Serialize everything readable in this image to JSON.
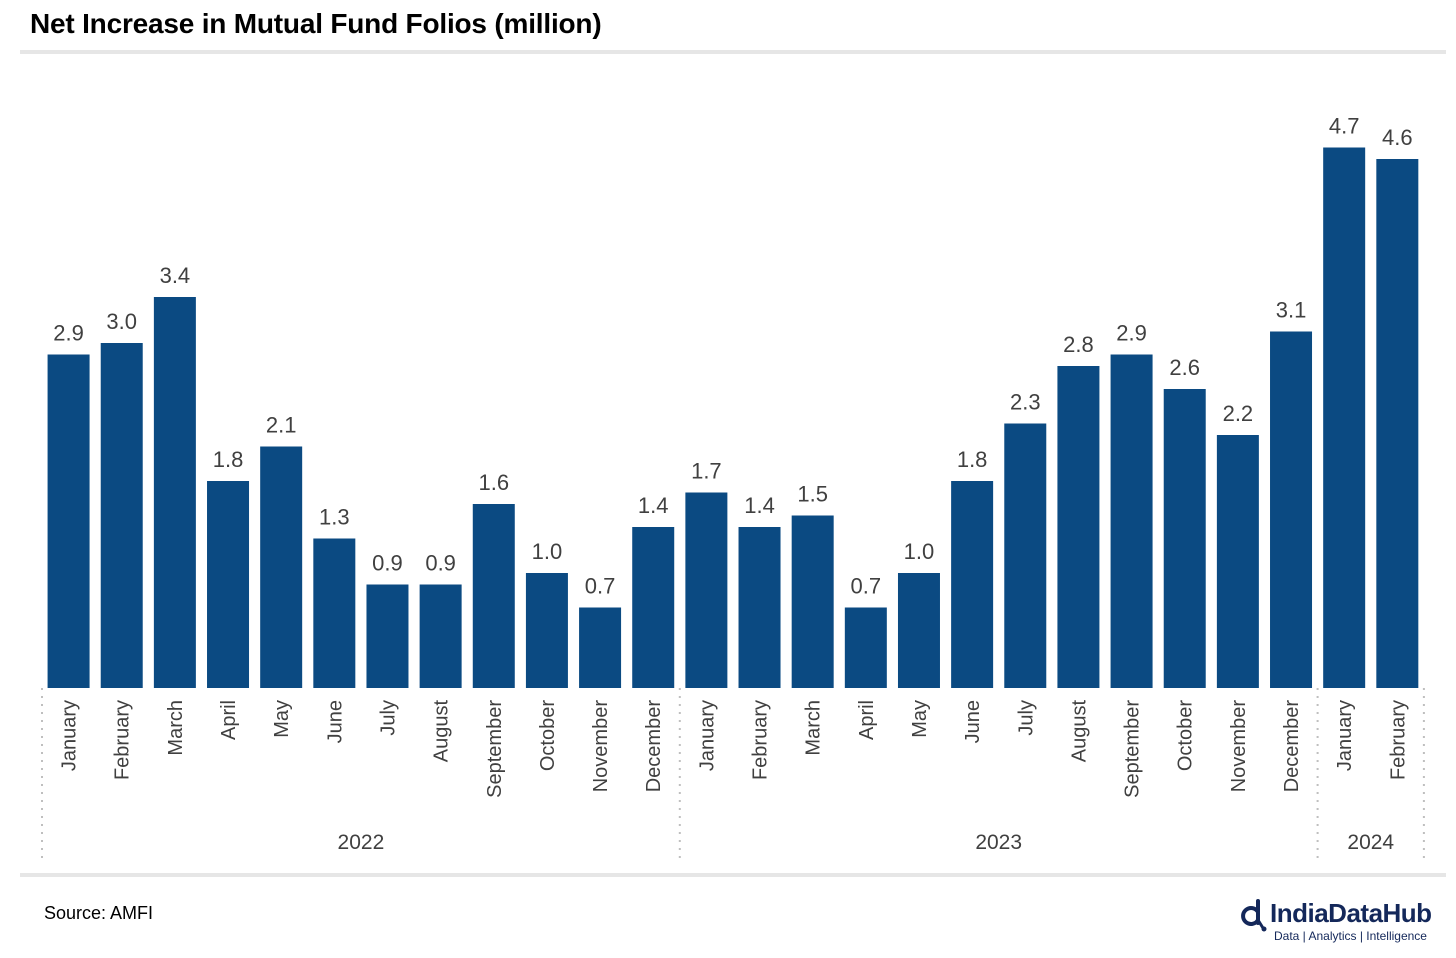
{
  "title": "Net Increase in Mutual Fund Folios (million)",
  "source": "Source: AMFI",
  "brand": {
    "name": "IndiaDataHub",
    "tagline": "Data | Analytics | Intelligence",
    "logo_icon": "india-data-hub-logo-icon",
    "color": "#14285a"
  },
  "colors": {
    "bar": "#0b4a82",
    "label": "#404040",
    "rule": "#e6e6e6",
    "separator": "#bfbfbf"
  },
  "chart_data": {
    "type": "bar",
    "title": "Net Increase in Mutual Fund Folios (million)",
    "xlabel": "",
    "ylabel": "",
    "ylim": [
      0,
      5.2
    ],
    "grid": false,
    "legend": "none",
    "categories": [
      "January",
      "February",
      "March",
      "April",
      "May",
      "June",
      "July",
      "August",
      "September",
      "October",
      "November",
      "December",
      "January",
      "February",
      "March",
      "April",
      "May",
      "June",
      "July",
      "August",
      "September",
      "October",
      "November",
      "December",
      "January",
      "February"
    ],
    "values": [
      2.9,
      3.0,
      3.4,
      1.8,
      2.1,
      1.3,
      0.9,
      0.9,
      1.6,
      1.0,
      0.7,
      1.4,
      1.7,
      1.4,
      1.5,
      0.7,
      1.0,
      1.8,
      2.3,
      2.8,
      2.9,
      2.6,
      2.2,
      3.1,
      4.7,
      4.6
    ],
    "value_labels": [
      "2.9",
      "3.0",
      "3.4",
      "1.8",
      "2.1",
      "1.3",
      "0.9",
      "0.9",
      "1.6",
      "1.0",
      "0.7",
      "1.4",
      "1.7",
      "1.4",
      "1.5",
      "0.7",
      "1.0",
      "1.8",
      "2.3",
      "2.8",
      "2.9",
      "2.6",
      "2.2",
      "3.1",
      "4.7",
      "4.6"
    ],
    "groups": [
      {
        "label": "2022",
        "count": 12
      },
      {
        "label": "2023",
        "count": 12
      },
      {
        "label": "2024",
        "count": 2
      }
    ]
  }
}
